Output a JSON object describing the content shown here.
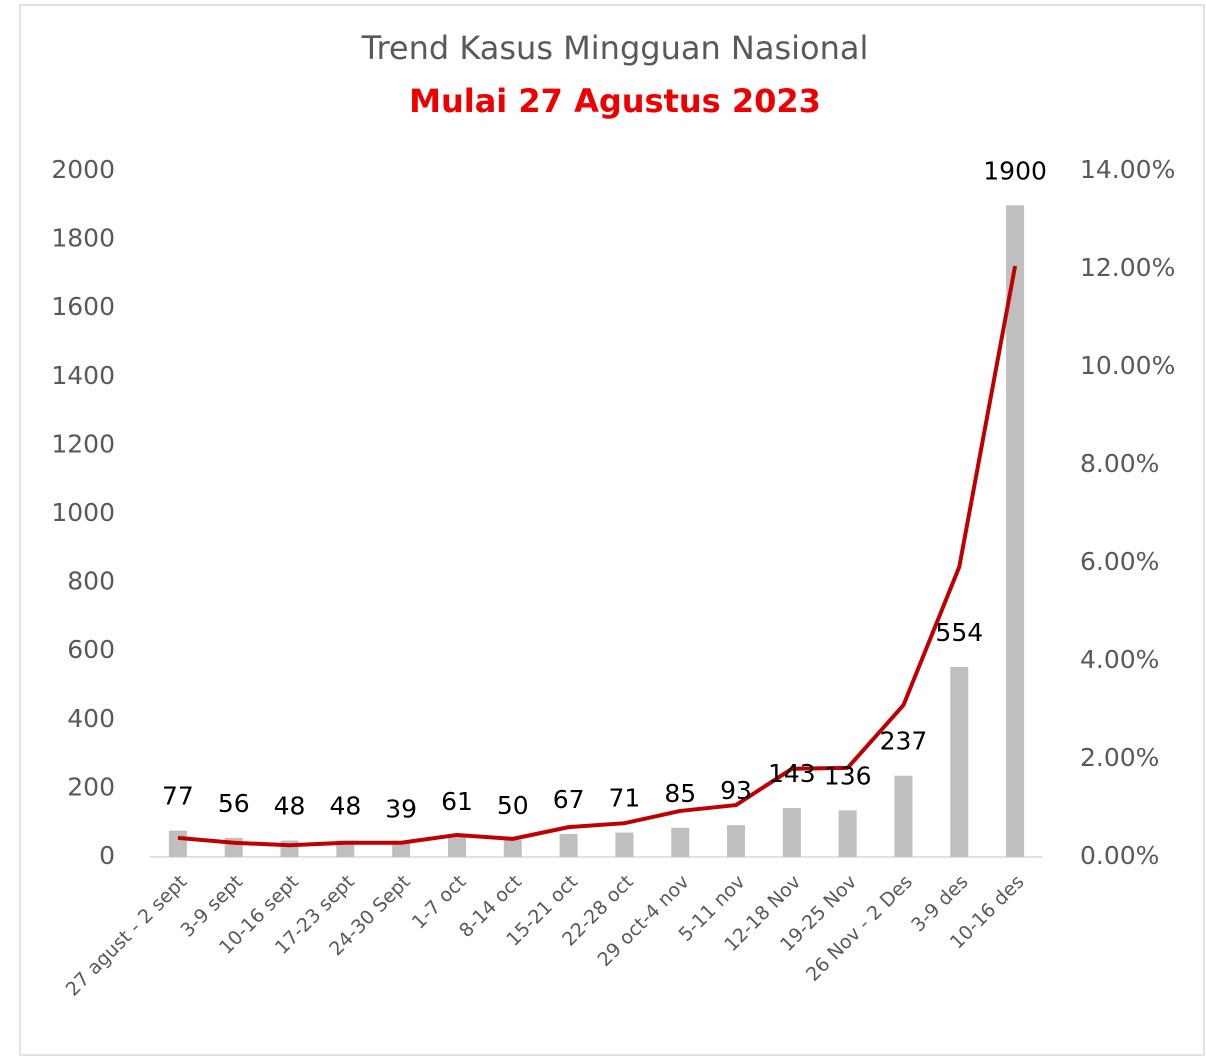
{
  "chart_data": {
    "type": "combo",
    "title": "Trend Kasus Mingguan Nasional",
    "subtitle": "Mulai 27 Agustus 2023",
    "categories": [
      "27 agust - 2 sept",
      "3-9 sept",
      "10-16 sept",
      "17-23 sept",
      "24-30 Sept",
      "1-7 oct",
      "8-14 oct",
      "15-21 oct",
      "22-28 oct",
      "29 oct-4 nov",
      "5-11 nov",
      "12-18 Nov",
      "19-25 Nov",
      "26 Nov - 2 Des",
      "3-9 des",
      "10-16 des"
    ],
    "series": [
      {
        "type": "bar",
        "color": "#bfbfbf",
        "values": [
          77,
          56,
          48,
          48,
          39,
          61,
          50,
          67,
          71,
          85,
          93,
          143,
          136,
          237,
          554,
          1900
        ]
      },
      {
        "type": "line",
        "axis": "y2",
        "color": "#c00000",
        "values": [
          0.39,
          0.29,
          0.24,
          0.29,
          0.29,
          0.45,
          0.37,
          0.61,
          0.69,
          0.94,
          1.06,
          1.8,
          1.82,
          3.1,
          5.92,
          12.06
        ]
      }
    ],
    "ylim": [
      0,
      2000
    ],
    "yticks": [
      0,
      200,
      400,
      600,
      800,
      1000,
      1200,
      1400,
      1600,
      1800,
      2000
    ],
    "y2lim": [
      0,
      14
    ],
    "y2ticks": [
      {
        "value": 0,
        "label": "0.00%"
      },
      {
        "value": 2,
        "label": "2.00%"
      },
      {
        "value": 4,
        "label": "4.00%"
      },
      {
        "value": 6,
        "label": "6.00%"
      },
      {
        "value": 8,
        "label": "8.00%"
      },
      {
        "value": 10,
        "label": "10.00%"
      },
      {
        "value": 12,
        "label": "12.00%"
      },
      {
        "value": 14,
        "label": "14.00%"
      }
    ]
  }
}
